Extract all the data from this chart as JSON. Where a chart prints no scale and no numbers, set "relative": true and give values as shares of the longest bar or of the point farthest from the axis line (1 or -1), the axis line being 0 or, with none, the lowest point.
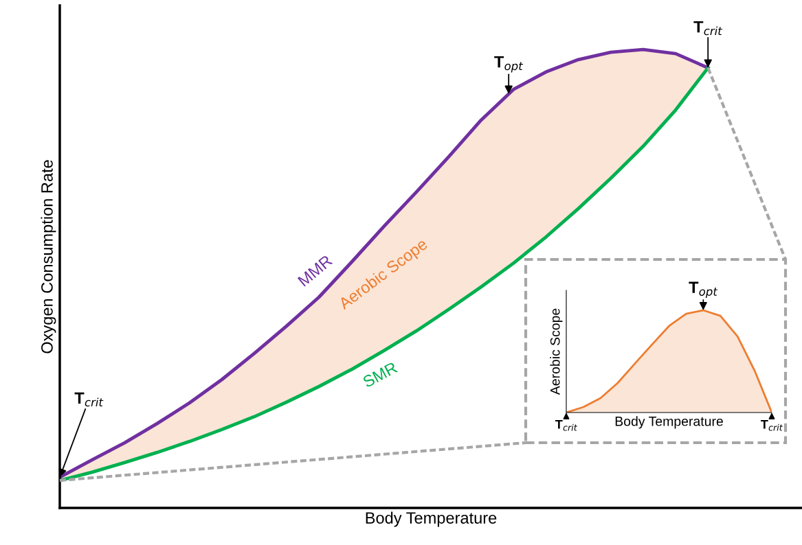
{
  "chart_data": [
    {
      "type": "line",
      "xlabel": "Body Temperature",
      "ylabel": "Oxygen Consumption Rate",
      "relative": true,
      "tick_labels": false,
      "legend": false,
      "grid": false,
      "categories": [
        null,
        null,
        null,
        null,
        null,
        null,
        null,
        null,
        null,
        null,
        null,
        null,
        null,
        null,
        null,
        null,
        null,
        null,
        null,
        null,
        null,
        null,
        null
      ],
      "series": [
        {
          "name": "MMR",
          "type": "line",
          "color": "#7030a0",
          "values": [
            0.067,
            0.105,
            0.142,
            0.184,
            0.229,
            0.28,
            0.337,
            0.397,
            0.46,
            0.536,
            0.614,
            0.689,
            0.766,
            0.846,
            0.913,
            0.951,
            0.978,
            0.994,
            1.0,
            0.991,
            0.96,
            null,
            null
          ],
          "lower": [
            0.06,
            0.078,
            0.099,
            0.121,
            0.145,
            0.171,
            0.199,
            0.231,
            0.265,
            0.302,
            0.343,
            0.386,
            0.433,
            0.482,
            0.534,
            0.591,
            0.653,
            0.719,
            0.789,
            0.868,
            0.96,
            null,
            null
          ],
          "upper": [
            0.067,
            0.105,
            0.142,
            0.184,
            0.229,
            0.28,
            0.337,
            0.397,
            0.46,
            0.536,
            0.614,
            0.689,
            0.766,
            0.846,
            0.913,
            0.951,
            0.978,
            0.994,
            1.0,
            0.991,
            0.96,
            null,
            null
          ]
        },
        {
          "name": "SMR",
          "type": "line",
          "color": "#00b050",
          "values": [
            0.06,
            0.078,
            0.099,
            0.121,
            0.145,
            0.171,
            0.199,
            0.231,
            0.265,
            0.302,
            0.343,
            0.386,
            0.433,
            0.482,
            0.534,
            0.591,
            0.653,
            0.719,
            0.789,
            0.868,
            0.96,
            null,
            null
          ]
        }
      ],
      "annotations": [
        "T$_{crit}$",
        "T$_{opt}$",
        "T$_{crit}$",
        "Aerobic Scope"
      ]
    },
    {
      "type": "area",
      "xlabel": "Body Temperature",
      "ylabel": "Aerobic Scope",
      "relative": true,
      "tick_labels": false,
      "legend": false,
      "grid": false,
      "categories": [
        null,
        null,
        null,
        null,
        null,
        null,
        null,
        null,
        null,
        null,
        null,
        null,
        null
      ],
      "series": [
        {
          "color": "#ed7d31",
          "values": [
            0,
            0.054,
            0.141,
            0.289,
            0.477,
            0.664,
            0.846,
            0.966,
            1.0,
            0.946,
            0.745,
            0.409,
            0
          ]
        }
      ],
      "annotations": [
        "T$_{crit}$",
        "T$_{opt}$",
        "T$_{crit}$"
      ]
    }
  ]
}
